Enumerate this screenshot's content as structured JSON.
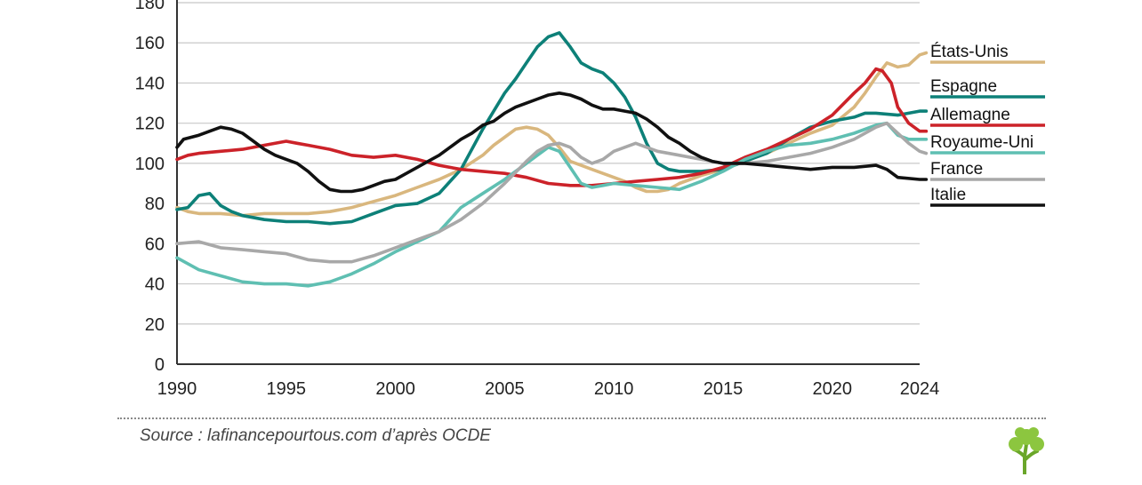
{
  "source": "Source : lafinancepourtous.com d’après OCDE",
  "logo_icon": "tree-icon",
  "chart_data": {
    "type": "line",
    "title": "",
    "xlabel": "",
    "ylabel": "",
    "xlim": [
      1990,
      2024
    ],
    "ylim": [
      0,
      180
    ],
    "x_ticks": [
      1990,
      1995,
      2000,
      2005,
      2010,
      2015,
      2020,
      2024
    ],
    "y_ticks": [
      0,
      20,
      40,
      60,
      80,
      100,
      120,
      140,
      160,
      180
    ],
    "grid": "horizontal",
    "legend": "right",
    "series": [
      {
        "name": "États-Unis",
        "color": "#d9b77e",
        "points": [
          [
            1990,
            78
          ],
          [
            1990.5,
            76
          ],
          [
            1991,
            75
          ],
          [
            1992,
            75
          ],
          [
            1993,
            74
          ],
          [
            1994,
            75
          ],
          [
            1995,
            75
          ],
          [
            1996,
            75
          ],
          [
            1997,
            76
          ],
          [
            1998,
            78
          ],
          [
            1999,
            81
          ],
          [
            2000,
            84
          ],
          [
            2001,
            88
          ],
          [
            2002,
            92
          ],
          [
            2003,
            97
          ],
          [
            2004,
            104
          ],
          [
            2004.5,
            109
          ],
          [
            2005,
            113
          ],
          [
            2005.5,
            117
          ],
          [
            2006,
            118
          ],
          [
            2006.5,
            117
          ],
          [
            2007,
            114
          ],
          [
            2007.5,
            108
          ],
          [
            2008,
            101
          ],
          [
            2008.5,
            99
          ],
          [
            2009,
            97
          ],
          [
            2009.5,
            95
          ],
          [
            2010,
            93
          ],
          [
            2010.5,
            91
          ],
          [
            2011,
            88
          ],
          [
            2011.5,
            86
          ],
          [
            2012,
            86
          ],
          [
            2012.5,
            87
          ],
          [
            2013,
            90
          ],
          [
            2013.5,
            92
          ],
          [
            2014,
            94
          ],
          [
            2015,
            97
          ],
          [
            2016,
            101
          ],
          [
            2017,
            105
          ],
          [
            2018,
            110
          ],
          [
            2019,
            115
          ],
          [
            2020,
            119
          ],
          [
            2021,
            128
          ],
          [
            2021.5,
            135
          ],
          [
            2022,
            143
          ],
          [
            2022.5,
            150
          ],
          [
            2023,
            148
          ],
          [
            2023.5,
            149
          ],
          [
            2024,
            154
          ],
          [
            2024.3,
            155
          ]
        ]
      },
      {
        "name": "Espagne",
        "color": "#0d8078",
        "points": [
          [
            1990,
            77
          ],
          [
            1990.5,
            78
          ],
          [
            1991,
            84
          ],
          [
            1991.5,
            85
          ],
          [
            1992,
            79
          ],
          [
            1992.5,
            76
          ],
          [
            1993,
            74
          ],
          [
            1994,
            72
          ],
          [
            1995,
            71
          ],
          [
            1996,
            71
          ],
          [
            1997,
            70
          ],
          [
            1998,
            71
          ],
          [
            1999,
            75
          ],
          [
            2000,
            79
          ],
          [
            2001,
            80
          ],
          [
            2002,
            85
          ],
          [
            2003,
            97
          ],
          [
            2004,
            117
          ],
          [
            2005,
            135
          ],
          [
            2005.5,
            142
          ],
          [
            2006,
            150
          ],
          [
            2006.5,
            158
          ],
          [
            2007,
            163
          ],
          [
            2007.5,
            165
          ],
          [
            2008,
            158
          ],
          [
            2008.5,
            150
          ],
          [
            2009,
            147
          ],
          [
            2009.5,
            145
          ],
          [
            2010,
            140
          ],
          [
            2010.5,
            133
          ],
          [
            2011,
            123
          ],
          [
            2011.5,
            110
          ],
          [
            2012,
            100
          ],
          [
            2012.5,
            97
          ],
          [
            2013,
            96
          ],
          [
            2014,
            96
          ],
          [
            2015,
            97
          ],
          [
            2016,
            101
          ],
          [
            2017,
            105
          ],
          [
            2018,
            112
          ],
          [
            2019,
            118
          ],
          [
            2020,
            121
          ],
          [
            2021,
            123
          ],
          [
            2021.5,
            125
          ],
          [
            2022,
            125
          ],
          [
            2023,
            124
          ],
          [
            2023.5,
            125
          ],
          [
            2024,
            126
          ],
          [
            2024.3,
            126
          ]
        ]
      },
      {
        "name": "Allemagne",
        "color": "#cc2229",
        "points": [
          [
            1990,
            102
          ],
          [
            1990.5,
            104
          ],
          [
            1991,
            105
          ],
          [
            1992,
            106
          ],
          [
            1993,
            107
          ],
          [
            1994,
            109
          ],
          [
            1995,
            111
          ],
          [
            1995.5,
            110
          ],
          [
            1996,
            109
          ],
          [
            1997,
            107
          ],
          [
            1998,
            104
          ],
          [
            1999,
            103
          ],
          [
            2000,
            104
          ],
          [
            2001,
            102
          ],
          [
            2002,
            99
          ],
          [
            2003,
            97
          ],
          [
            2004,
            96
          ],
          [
            2005,
            95
          ],
          [
            2006,
            93
          ],
          [
            2007,
            90
          ],
          [
            2008,
            89
          ],
          [
            2009,
            89
          ],
          [
            2010,
            90
          ],
          [
            2011,
            91
          ],
          [
            2012,
            92
          ],
          [
            2013,
            93
          ],
          [
            2014,
            95
          ],
          [
            2015,
            98
          ],
          [
            2016,
            103
          ],
          [
            2017,
            107
          ],
          [
            2018,
            112
          ],
          [
            2019,
            117
          ],
          [
            2020,
            124
          ],
          [
            2021,
            135
          ],
          [
            2021.5,
            140
          ],
          [
            2022,
            147
          ],
          [
            2022.3,
            146
          ],
          [
            2022.7,
            140
          ],
          [
            2023,
            128
          ],
          [
            2023.5,
            120
          ],
          [
            2024,
            116
          ],
          [
            2024.3,
            116
          ]
        ]
      },
      {
        "name": "Royaume-Uni",
        "color": "#5fbfb2",
        "points": [
          [
            1990,
            53
          ],
          [
            1990.5,
            50
          ],
          [
            1991,
            47
          ],
          [
            1992,
            44
          ],
          [
            1993,
            41
          ],
          [
            1994,
            40
          ],
          [
            1995,
            40
          ],
          [
            1996,
            39
          ],
          [
            1997,
            41
          ],
          [
            1998,
            45
          ],
          [
            1999,
            50
          ],
          [
            2000,
            56
          ],
          [
            2001,
            61
          ],
          [
            2002,
            66
          ],
          [
            2003,
            78
          ],
          [
            2004,
            85
          ],
          [
            2005,
            92
          ],
          [
            2006,
            100
          ],
          [
            2006.5,
            104
          ],
          [
            2007,
            108
          ],
          [
            2007.5,
            106
          ],
          [
            2008,
            98
          ],
          [
            2008.5,
            90
          ],
          [
            2009,
            88
          ],
          [
            2009.5,
            89
          ],
          [
            2010,
            90
          ],
          [
            2011,
            89
          ],
          [
            2012,
            88
          ],
          [
            2013,
            87
          ],
          [
            2014,
            91
          ],
          [
            2015,
            96
          ],
          [
            2016,
            102
          ],
          [
            2017,
            106
          ],
          [
            2018,
            109
          ],
          [
            2019,
            110
          ],
          [
            2020,
            112
          ],
          [
            2021,
            115
          ],
          [
            2022,
            119
          ],
          [
            2022.5,
            120
          ],
          [
            2023,
            114
          ],
          [
            2023.5,
            112
          ],
          [
            2024,
            112
          ],
          [
            2024.3,
            112
          ]
        ]
      },
      {
        "name": "France",
        "color": "#a8a8a8",
        "points": [
          [
            1990,
            60
          ],
          [
            1991,
            61
          ],
          [
            1992,
            58
          ],
          [
            1993,
            57
          ],
          [
            1994,
            56
          ],
          [
            1995,
            55
          ],
          [
            1996,
            52
          ],
          [
            1997,
            51
          ],
          [
            1998,
            51
          ],
          [
            1999,
            54
          ],
          [
            2000,
            58
          ],
          [
            2001,
            62
          ],
          [
            2002,
            66
          ],
          [
            2003,
            72
          ],
          [
            2004,
            80
          ],
          [
            2005,
            90
          ],
          [
            2006,
            101
          ],
          [
            2006.5,
            106
          ],
          [
            2007,
            109
          ],
          [
            2007.5,
            110
          ],
          [
            2008,
            108
          ],
          [
            2008.5,
            103
          ],
          [
            2009,
            100
          ],
          [
            2009.5,
            102
          ],
          [
            2010,
            106
          ],
          [
            2010.5,
            108
          ],
          [
            2011,
            110
          ],
          [
            2012,
            106
          ],
          [
            2013,
            104
          ],
          [
            2014,
            102
          ],
          [
            2015,
            100
          ],
          [
            2016,
            100
          ],
          [
            2017,
            101
          ],
          [
            2018,
            103
          ],
          [
            2019,
            105
          ],
          [
            2020,
            108
          ],
          [
            2021,
            112
          ],
          [
            2022,
            118
          ],
          [
            2022.5,
            120
          ],
          [
            2023,
            115
          ],
          [
            2023.5,
            110
          ],
          [
            2024,
            106
          ],
          [
            2024.3,
            105
          ]
        ]
      },
      {
        "name": "Italie",
        "color": "#111111",
        "points": [
          [
            1990,
            108
          ],
          [
            1990.3,
            112
          ],
          [
            1991,
            114
          ],
          [
            1991.5,
            116
          ],
          [
            1992,
            118
          ],
          [
            1992.5,
            117
          ],
          [
            1993,
            115
          ],
          [
            1993.5,
            111
          ],
          [
            1994,
            107
          ],
          [
            1994.5,
            104
          ],
          [
            1995,
            102
          ],
          [
            1995.5,
            100
          ],
          [
            1996,
            96
          ],
          [
            1996.5,
            91
          ],
          [
            1997,
            87
          ],
          [
            1997.5,
            86
          ],
          [
            1998,
            86
          ],
          [
            1998.5,
            87
          ],
          [
            1999,
            89
          ],
          [
            1999.5,
            91
          ],
          [
            2000,
            92
          ],
          [
            2000.5,
            95
          ],
          [
            2001,
            98
          ],
          [
            2001.5,
            101
          ],
          [
            2002,
            104
          ],
          [
            2002.5,
            108
          ],
          [
            2003,
            112
          ],
          [
            2003.5,
            115
          ],
          [
            2004,
            119
          ],
          [
            2004.5,
            121
          ],
          [
            2005,
            125
          ],
          [
            2005.5,
            128
          ],
          [
            2006,
            130
          ],
          [
            2006.5,
            132
          ],
          [
            2007,
            134
          ],
          [
            2007.5,
            135
          ],
          [
            2008,
            134
          ],
          [
            2008.5,
            132
          ],
          [
            2009,
            129
          ],
          [
            2009.5,
            127
          ],
          [
            2010,
            127
          ],
          [
            2010.5,
            126
          ],
          [
            2011,
            125
          ],
          [
            2011.5,
            122
          ],
          [
            2012,
            118
          ],
          [
            2012.5,
            113
          ],
          [
            2013,
            110
          ],
          [
            2013.5,
            106
          ],
          [
            2014,
            103
          ],
          [
            2014.5,
            101
          ],
          [
            2015,
            100
          ],
          [
            2016,
            100
          ],
          [
            2017,
            99
          ],
          [
            2018,
            98
          ],
          [
            2019,
            97
          ],
          [
            2020,
            98
          ],
          [
            2021,
            98
          ],
          [
            2022,
            99
          ],
          [
            2022.5,
            97
          ],
          [
            2023,
            93
          ],
          [
            2024,
            92
          ],
          [
            2024.3,
            92
          ]
        ]
      }
    ]
  }
}
